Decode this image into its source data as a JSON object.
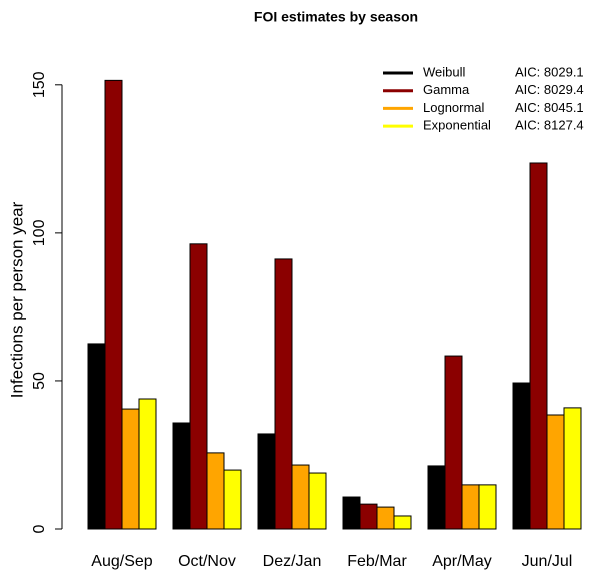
{
  "chart_data": {
    "type": "bar",
    "title": "FOI estimates by season",
    "y_label": "Infections per person year",
    "categories": [
      "Aug/Sep",
      "Oct/Nov",
      "Dez/Jan",
      "Feb/Mar",
      "Apr/May",
      "Jun/Jul"
    ],
    "series": [
      {
        "name": "Weibull",
        "aic": "AIC: 8029.1",
        "color": "#000000",
        "values": [
          62.5,
          35.8,
          32.1,
          10.8,
          21.3,
          49.3
        ]
      },
      {
        "name": "Gamma",
        "aic": "AIC: 8029.4",
        "color": "#8b0000",
        "values": [
          151.5,
          96.3,
          91.2,
          8.4,
          58.4,
          123.6
        ]
      },
      {
        "name": "Lognormal",
        "aic": "AIC: 8045.1",
        "color": "#ffa500",
        "values": [
          40.5,
          25.7,
          21.6,
          7.4,
          14.9,
          38.5
        ]
      },
      {
        "name": "Exponential",
        "aic": "AIC: 8127.4",
        "color": "#ffff00",
        "values": [
          43.9,
          19.9,
          18.9,
          4.4,
          14.9,
          40.9
        ]
      }
    ],
    "ylim": [
      0,
      155
    ],
    "yticks": [
      0,
      50,
      100,
      150
    ],
    "legend": "top-right"
  }
}
